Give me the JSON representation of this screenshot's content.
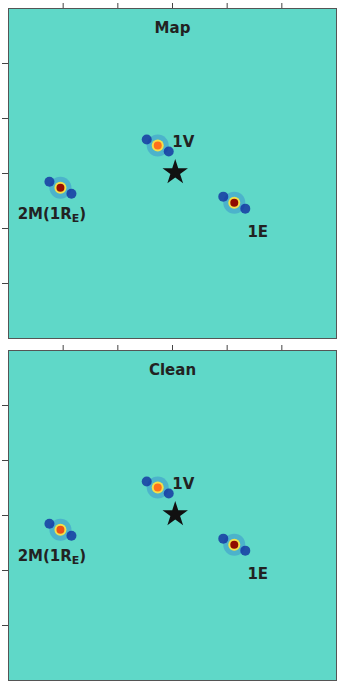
{
  "chart_data": [
    {
      "type": "image",
      "title": "Map",
      "xlim": [
        -3,
        3
      ],
      "ylim": [
        -3,
        3
      ],
      "xticks": [
        -2,
        -1,
        0,
        1,
        2
      ],
      "yticks": [
        -2,
        -1,
        0,
        1,
        2
      ],
      "tick_labels": false,
      "star": {
        "x": 0.05,
        "y": 0.02
      },
      "sources": [
        {
          "label": {
            "text": "1V"
          },
          "x": -0.27,
          "y": 0.51,
          "peak": 0.5
        },
        {
          "label": {
            "text": "2M(1R",
            "subscript": "E",
            "suffix": ")"
          },
          "x": -2.05,
          "y": -0.26,
          "peak": 0.9
        },
        {
          "label": {
            "text": "1E"
          },
          "x": 1.13,
          "y": -0.53,
          "peak": 1.0
        }
      ]
    },
    {
      "type": "image",
      "title": "Clean",
      "xlim": [
        -3,
        3
      ],
      "ylim": [
        -3,
        3
      ],
      "xticks": [
        -2,
        -1,
        0,
        1,
        2
      ],
      "yticks": [
        -2,
        -1,
        0,
        1,
        2
      ],
      "tick_labels": false,
      "star": {
        "x": 0.05,
        "y": 0.02
      },
      "sources": [
        {
          "label": {
            "text": "1V"
          },
          "x": -0.27,
          "y": 0.51,
          "peak": 0.5
        },
        {
          "label": {
            "text": "2M(1R",
            "subscript": "E",
            "suffix": ")"
          },
          "x": -2.05,
          "y": -0.26,
          "peak": 0.6
        },
        {
          "label": {
            "text": "1E"
          },
          "x": 1.13,
          "y": -0.53,
          "peak": 1.0
        }
      ]
    }
  ]
}
